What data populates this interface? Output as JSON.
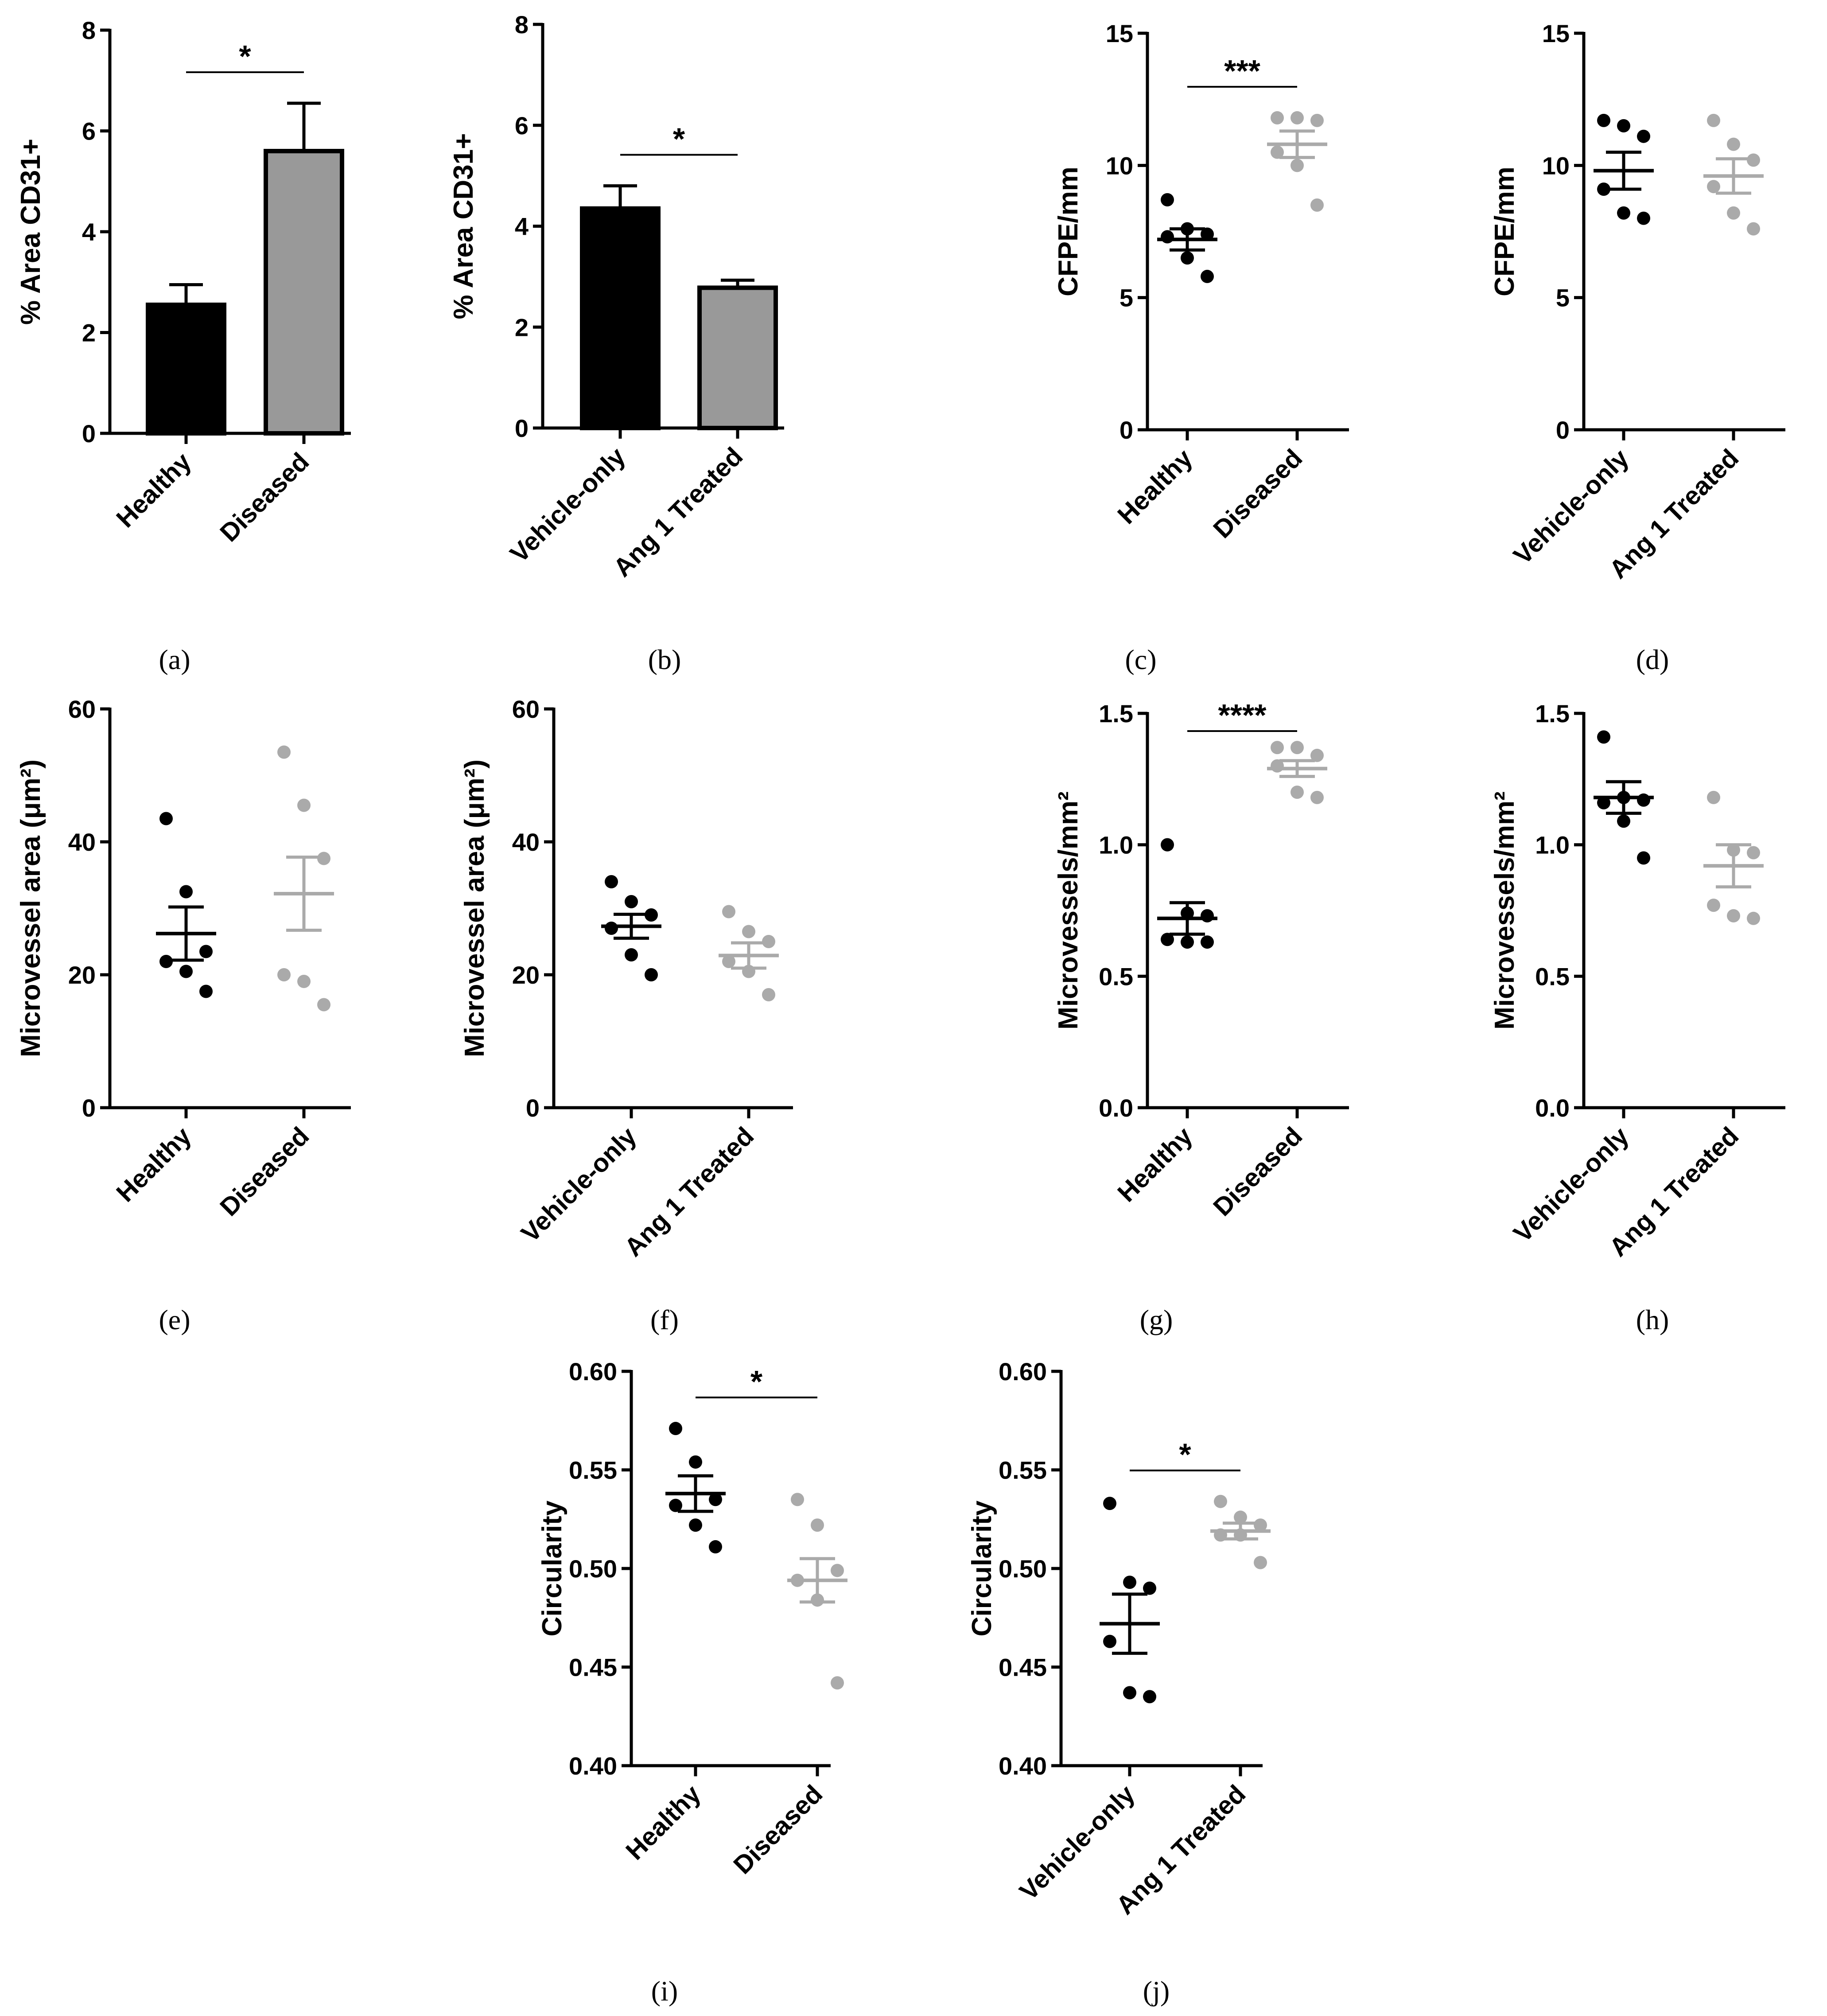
{
  "chart_data": [
    {
      "panel_label": "(a)",
      "type": "bar",
      "categories": [
        "Healthy",
        "Diseased"
      ],
      "values": [
        2.55,
        5.6
      ],
      "errors": [
        0.4,
        0.95
      ],
      "colors": [
        "#000000",
        "#999999"
      ],
      "ylabel": "% Area CD31+",
      "ylim": [
        0,
        8
      ],
      "yticks": [
        "0",
        "2",
        "4",
        "6",
        "8"
      ],
      "ytick_values": [
        0,
        2,
        4,
        6,
        8
      ],
      "significance": "*"
    },
    {
      "panel_label": "(b)",
      "type": "bar",
      "categories": [
        "Vehicle-only",
        "Ang 1 Treated"
      ],
      "values": [
        4.35,
        2.78
      ],
      "errors": [
        0.45,
        0.15
      ],
      "colors": [
        "#000000",
        "#999999"
      ],
      "ylabel": "% Area CD31+",
      "ylim": [
        0,
        8
      ],
      "yticks": [
        "0",
        "2",
        "4",
        "6",
        "8"
      ],
      "ytick_values": [
        0,
        2,
        4,
        6,
        8
      ],
      "significance": "*"
    },
    {
      "panel_label": "(c)",
      "type": "scatter",
      "categories": [
        "Healthy",
        "Diseased"
      ],
      "points": [
        [
          8.7,
          7.6,
          7.4,
          7.3,
          6.5,
          5.8
        ],
        [
          11.8,
          11.8,
          11.7,
          10.5,
          10.0,
          8.5
        ]
      ],
      "means": [
        7.2,
        10.8
      ],
      "sems": [
        0.4,
        0.5
      ],
      "colors": [
        "#000000",
        "#aaaaaa"
      ],
      "ylabel": "CFPE/mm",
      "ylim": [
        0,
        15
      ],
      "yticks": [
        "0",
        "5",
        "10",
        "15"
      ],
      "ytick_values": [
        0,
        5,
        10,
        15
      ],
      "significance": "***"
    },
    {
      "panel_label": "(d)",
      "type": "scatter",
      "categories": [
        "Vehicle-only",
        "Ang 1 Treated"
      ],
      "points": [
        [
          11.7,
          11.5,
          11.1,
          9.1,
          8.2,
          8.0
        ],
        [
          11.7,
          10.8,
          10.2,
          9.2,
          8.2,
          7.6
        ]
      ],
      "means": [
        9.8,
        9.6
      ],
      "sems": [
        0.7,
        0.65
      ],
      "colors": [
        "#000000",
        "#aaaaaa"
      ],
      "ylabel": "CFPE/mm",
      "ylim": [
        0,
        15
      ],
      "yticks": [
        "0",
        "5",
        "10",
        "15"
      ],
      "ytick_values": [
        0,
        5,
        10,
        15
      ],
      "significance": ""
    },
    {
      "panel_label": "(e)",
      "type": "scatter",
      "categories": [
        "Healthy",
        "Diseased"
      ],
      "points": [
        [
          43.5,
          32.5,
          23.5,
          22.0,
          20.5,
          17.5
        ],
        [
          53.5,
          45.5,
          37.5,
          20.0,
          19.0,
          15.5
        ]
      ],
      "means": [
        26.2,
        32.2
      ],
      "sems": [
        4.0,
        5.5
      ],
      "colors": [
        "#000000",
        "#aaaaaa"
      ],
      "ylabel": "Microvessel area (μm²)",
      "ylim": [
        0,
        60
      ],
      "yticks": [
        "0",
        "20",
        "40",
        "60"
      ],
      "ytick_values": [
        0,
        20,
        40,
        60
      ],
      "significance": ""
    },
    {
      "panel_label": "(f)",
      "type": "scatter",
      "categories": [
        "Vehicle-only",
        "Ang 1 Treated"
      ],
      "points": [
        [
          34.0,
          31.0,
          29.0,
          27.0,
          23.0,
          20.0
        ],
        [
          29.5,
          26.5,
          25.0,
          22.0,
          20.5,
          17.0
        ]
      ],
      "means": [
        27.3,
        22.9
      ],
      "sems": [
        1.8,
        1.9
      ],
      "colors": [
        "#000000",
        "#aaaaaa"
      ],
      "ylabel": "Microvessel area (μm²)",
      "ylim": [
        0,
        60
      ],
      "yticks": [
        "0",
        "20",
        "40",
        "60"
      ],
      "ytick_values": [
        0,
        20,
        40,
        60
      ],
      "significance": ""
    },
    {
      "panel_label": "(g)",
      "type": "scatter",
      "categories": [
        "Healthy",
        "Diseased"
      ],
      "points": [
        [
          1.0,
          0.74,
          0.73,
          0.64,
          0.63,
          0.63
        ],
        [
          1.37,
          1.37,
          1.34,
          1.3,
          1.2,
          1.18
        ]
      ],
      "means": [
        0.72,
        1.29
      ],
      "sems": [
        0.06,
        0.03
      ],
      "colors": [
        "#000000",
        "#aaaaaa"
      ],
      "ylabel": "Microvessels/mm²",
      "ylim": [
        0,
        1.5
      ],
      "yticks": [
        "0.0",
        "0.5",
        "1.0",
        "1.5"
      ],
      "ytick_values": [
        0,
        0.5,
        1.0,
        1.5
      ],
      "significance": "****"
    },
    {
      "panel_label": "(h)",
      "type": "scatter",
      "categories": [
        "Vehicle-only",
        "Ang 1 Treated"
      ],
      "points": [
        [
          1.41,
          1.18,
          1.17,
          1.16,
          1.09,
          0.95
        ],
        [
          1.18,
          0.98,
          0.97,
          0.77,
          0.73,
          0.72
        ]
      ],
      "means": [
        1.18,
        0.92
      ],
      "sems": [
        0.06,
        0.08
      ],
      "colors": [
        "#000000",
        "#aaaaaa"
      ],
      "ylabel": "Microvessels/mm²",
      "ylim": [
        0,
        1.5
      ],
      "yticks": [
        "0.0",
        "0.5",
        "1.0",
        "1.5"
      ],
      "ytick_values": [
        0,
        0.5,
        1.0,
        1.5
      ],
      "significance": ""
    },
    {
      "panel_label": "(i)",
      "type": "scatter",
      "categories": [
        "Healthy",
        "Diseased"
      ],
      "points": [
        [
          0.571,
          0.554,
          0.535,
          0.532,
          0.522,
          0.511
        ],
        [
          0.535,
          0.522,
          0.499,
          0.494,
          0.484,
          0.442
        ]
      ],
      "means": [
        0.538,
        0.494
      ],
      "sems": [
        0.009,
        0.011
      ],
      "colors": [
        "#000000",
        "#aaaaaa"
      ],
      "ylabel": "Circularity",
      "ylim": [
        0.4,
        0.6
      ],
      "yticks": [
        "0.40",
        "0.45",
        "0.50",
        "0.55",
        "0.60"
      ],
      "ytick_values": [
        0.4,
        0.45,
        0.5,
        0.55,
        0.6
      ],
      "significance": "*"
    },
    {
      "panel_label": "(j)",
      "type": "scatter",
      "categories": [
        "Vehicle-only",
        "Ang 1 Treated"
      ],
      "points": [
        [
          0.533,
          0.493,
          0.49,
          0.463,
          0.437,
          0.435
        ],
        [
          0.534,
          0.526,
          0.522,
          0.517,
          0.517,
          0.503
        ]
      ],
      "means": [
        0.472,
        0.519
      ],
      "sems": [
        0.015,
        0.004
      ],
      "colors": [
        "#000000",
        "#aaaaaa"
      ],
      "ylabel": "Circularity",
      "ylim": [
        0.4,
        0.6
      ],
      "yticks": [
        "0.40",
        "0.45",
        "0.50",
        "0.55",
        "0.60"
      ],
      "ytick_values": [
        0.4,
        0.45,
        0.5,
        0.55,
        0.6
      ],
      "significance": "*"
    }
  ]
}
